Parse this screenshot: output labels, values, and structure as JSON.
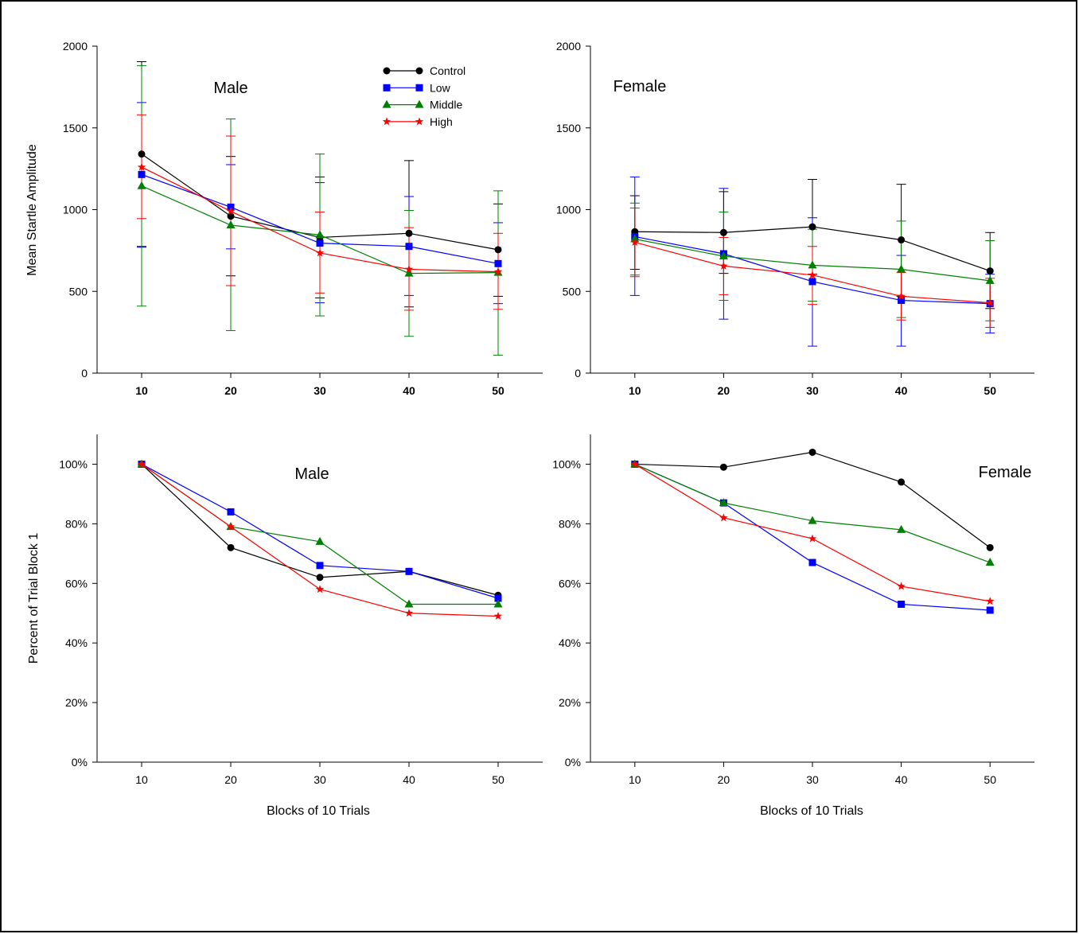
{
  "legend": [
    {
      "name": "Control",
      "color": "#000000",
      "marker": "circle"
    },
    {
      "name": "Low",
      "color": "#0000ff",
      "marker": "square"
    },
    {
      "name": "Middle",
      "color": "#008000",
      "marker": "triangle"
    },
    {
      "name": "High",
      "color": "#ff0000",
      "marker": "star"
    }
  ],
  "chart_data": [
    {
      "type": "line",
      "title": "Male",
      "ylabel": "Mean Startle Amplitude",
      "xlabel": "",
      "x": [
        10,
        20,
        30,
        40,
        50
      ],
      "x_tick_labels": [
        "10",
        "20",
        "30",
        "40",
        "50"
      ],
      "x_tick_bold": true,
      "ylim": [
        0,
        2000
      ],
      "y_ticks": [
        0,
        500,
        1000,
        1500,
        2000
      ],
      "y_tick_labels": [
        "0",
        "500",
        "1000",
        "1500",
        "2000"
      ],
      "legend_position": "top-right",
      "series": [
        {
          "name": "Control",
          "values": [
            1340,
            960,
            830,
            855,
            755
          ],
          "err_lo": [
            775,
            595,
            460,
            405,
            470
          ],
          "err_hi": [
            1905,
            1325,
            1200,
            1300,
            1035
          ]
        },
        {
          "name": "Low",
          "values": [
            1215,
            1015,
            795,
            775,
            670
          ],
          "err_lo": [
            770,
            760,
            430,
            475,
            425
          ],
          "err_hi": [
            1655,
            1275,
            1165,
            1080,
            920
          ]
        },
        {
          "name": "Middle",
          "values": [
            1145,
            905,
            845,
            610,
            615
          ],
          "err_lo": [
            410,
            260,
            350,
            225,
            110
          ],
          "err_hi": [
            1880,
            1555,
            1340,
            995,
            1115
          ]
        },
        {
          "name": "High",
          "values": [
            1260,
            990,
            735,
            635,
            620
          ],
          "err_lo": [
            945,
            535,
            490,
            385,
            390
          ],
          "err_hi": [
            1580,
            1450,
            985,
            890,
            855
          ]
        }
      ]
    },
    {
      "type": "line",
      "title": "Female",
      "ylabel": "",
      "xlabel": "",
      "x": [
        10,
        20,
        30,
        40,
        50
      ],
      "x_tick_labels": [
        "10",
        "20",
        "30",
        "40",
        "50"
      ],
      "x_tick_bold": true,
      "ylim": [
        0,
        2000
      ],
      "y_ticks": [
        0,
        500,
        1000,
        1500,
        2000
      ],
      "y_tick_labels": [
        "0",
        "500",
        "1000",
        "1500",
        "2000"
      ],
      "series": [
        {
          "name": "Control",
          "values": [
            865,
            860,
            895,
            815,
            625
          ],
          "err_lo": [
            635,
            610,
            605,
            470,
            395
          ],
          "err_hi": [
            1085,
            1110,
            1185,
            1155,
            860
          ]
        },
        {
          "name": "Low",
          "values": [
            835,
            730,
            560,
            445,
            425
          ],
          "err_lo": [
            475,
            330,
            165,
            165,
            245
          ],
          "err_hi": [
            1200,
            1130,
            950,
            720,
            605
          ]
        },
        {
          "name": "Middle",
          "values": [
            820,
            715,
            660,
            635,
            565
          ],
          "err_lo": [
            600,
            445,
            440,
            340,
            320
          ],
          "err_hi": [
            1040,
            985,
            880,
            930,
            810
          ]
        },
        {
          "name": "High",
          "values": [
            800,
            655,
            600,
            470,
            430
          ],
          "err_lo": [
            590,
            480,
            420,
            325,
            280
          ],
          "err_hi": [
            1010,
            830,
            775,
            615,
            580
          ]
        }
      ]
    },
    {
      "type": "line",
      "title": "Male",
      "ylabel": "Percent of Trial Block 1",
      "xlabel": "Blocks of 10 Trials",
      "x": [
        10,
        20,
        30,
        40,
        50
      ],
      "x_tick_labels": [
        "10",
        "20",
        "30",
        "40",
        "50"
      ],
      "x_tick_bold": false,
      "ylim": [
        0,
        1.1
      ],
      "y_ticks": [
        0,
        0.2,
        0.4,
        0.6,
        0.8,
        1.0
      ],
      "y_tick_labels": [
        "0%",
        "20%",
        "40%",
        "60%",
        "80%",
        "100%"
      ],
      "series": [
        {
          "name": "Control",
          "values": [
            1.0,
            0.72,
            0.62,
            0.64,
            0.56
          ]
        },
        {
          "name": "Low",
          "values": [
            1.0,
            0.84,
            0.66,
            0.64,
            0.55
          ]
        },
        {
          "name": "Middle",
          "values": [
            1.0,
            0.79,
            0.74,
            0.53,
            0.53
          ]
        },
        {
          "name": "High",
          "values": [
            1.0,
            0.79,
            0.58,
            0.5,
            0.49
          ]
        }
      ]
    },
    {
      "type": "line",
      "title": "Female",
      "ylabel": "",
      "xlabel": "Blocks of 10 Trials",
      "x": [
        10,
        20,
        30,
        40,
        50
      ],
      "x_tick_labels": [
        "10",
        "20",
        "30",
        "40",
        "50"
      ],
      "x_tick_bold": false,
      "ylim": [
        0,
        1.1
      ],
      "y_ticks": [
        0,
        0.2,
        0.4,
        0.6,
        0.8,
        1.0
      ],
      "y_tick_labels": [
        "0%",
        "20%",
        "40%",
        "60%",
        "80%",
        "100%"
      ],
      "series": [
        {
          "name": "Control",
          "values": [
            1.0,
            0.99,
            1.04,
            0.94,
            0.72
          ]
        },
        {
          "name": "Low",
          "values": [
            1.0,
            0.87,
            0.67,
            0.53,
            0.51
          ]
        },
        {
          "name": "Middle",
          "values": [
            1.0,
            0.87,
            0.81,
            0.78,
            0.67
          ]
        },
        {
          "name": "High",
          "values": [
            1.0,
            0.82,
            0.75,
            0.59,
            0.54
          ]
        }
      ]
    }
  ]
}
